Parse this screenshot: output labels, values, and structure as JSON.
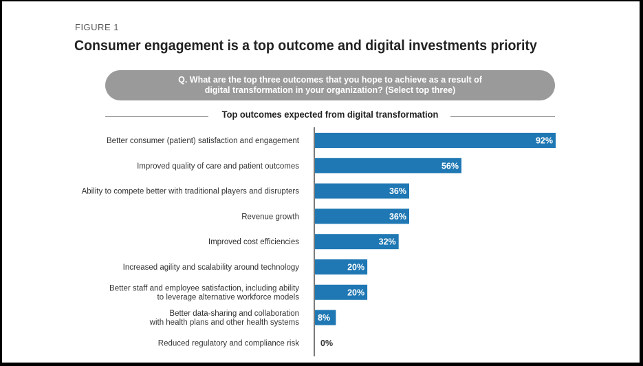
{
  "figure_label": "FIGURE 1",
  "title": "Consumer engagement is a top outcome and digital investments priority",
  "question": "Q. What are the top three outcomes that you hope to achieve as a result of digital transformation in your organization? (Select top three)",
  "colors": {
    "bar": "#1f78b4",
    "axis": "#222222",
    "question_bg": "#9a9a9a"
  },
  "chart_data": {
    "type": "bar",
    "orientation": "horizontal",
    "title": "Top outcomes expected from digital transformation",
    "categories": [
      [
        "Better consumer (patient) satisfaction and engagement"
      ],
      [
        "Improved quality of care and patient outcomes"
      ],
      [
        "Ability to compete better with traditional players and disrupters"
      ],
      [
        "Revenue growth"
      ],
      [
        "Improved cost efficiencies"
      ],
      [
        "Increased agility and scalability around technology"
      ],
      [
        "Better staff and employee satisfaction, including ability",
        "to leverage alternative workforce models"
      ],
      [
        "Better data-sharing and collaboration",
        "with health plans and other health systems"
      ],
      [
        "Reduced regulatory and compliance risk"
      ]
    ],
    "values": [
      92,
      56,
      36,
      36,
      32,
      20,
      20,
      8,
      0
    ],
    "value_labels": [
      "92%",
      "56%",
      "36%",
      "36%",
      "32%",
      "20%",
      "20%",
      "8%",
      "0%"
    ],
    "xlim": [
      0,
      92
    ]
  }
}
